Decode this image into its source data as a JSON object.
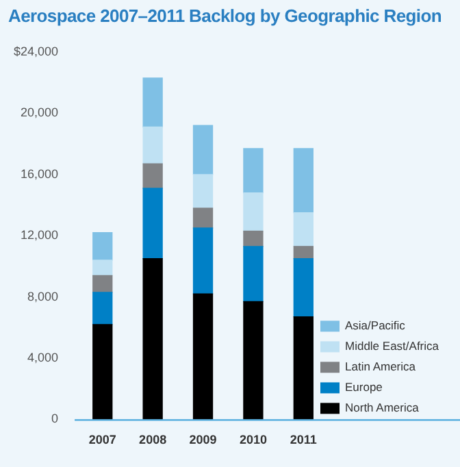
{
  "chart_data": {
    "type": "bar",
    "title": "Aerospace 2007–2011 Backlog by Geographic Region",
    "categories": [
      "2007",
      "2008",
      "2009",
      "2010",
      "2011"
    ],
    "stacked": true,
    "legend": "bottom right",
    "grid": false,
    "ylim": [
      0,
      24000
    ],
    "yticks": [
      0,
      {
        "value": 4000,
        "label": "4,000"
      },
      {
        "value": 8000,
        "label": "8,000"
      },
      {
        "value": 12000,
        "label": "12,000"
      },
      {
        "value": 16000,
        "label": "16,000"
      },
      {
        "value": 20000,
        "label": "20,000"
      },
      {
        "value": 24000,
        "label": "$24,000"
      }
    ],
    "series": [
      {
        "name": "North America",
        "color": "#000000",
        "values": [
          6200,
          10500,
          8200,
          7700,
          6700
        ]
      },
      {
        "name": "Europe",
        "color": "#0080c6",
        "values": [
          2100,
          4600,
          4300,
          3600,
          3800
        ]
      },
      {
        "name": "Latin America",
        "color": "#808285",
        "values": [
          1100,
          1600,
          1300,
          1000,
          800
        ]
      },
      {
        "name": "Middle East/Africa",
        "color": "#bfe1f3",
        "values": [
          1000,
          2400,
          2200,
          2500,
          2200
        ]
      },
      {
        "name": "Asia/Pacific",
        "color": "#7fc0e5",
        "values": [
          1800,
          3200,
          3200,
          2900,
          4200
        ]
      }
    ]
  }
}
